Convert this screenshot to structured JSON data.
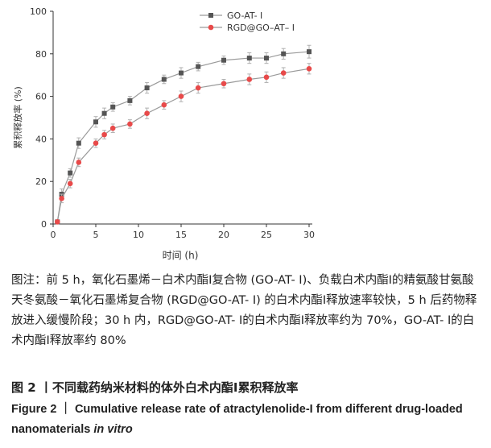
{
  "chart_data": {
    "type": "line",
    "xlabel": "时间 (h)",
    "ylabel": "累积释放率 (%)",
    "xlim": [
      0,
      30
    ],
    "ylim": [
      0,
      100
    ],
    "xticks": [
      0,
      5,
      10,
      15,
      20,
      25,
      30
    ],
    "yticks": [
      0,
      20,
      40,
      60,
      80,
      100
    ],
    "legend_position": "top-center",
    "grid": false,
    "series": [
      {
        "name": "GO-AT- Ⅰ",
        "color": "#555555",
        "marker": "square",
        "x": [
          0.5,
          1,
          2,
          3,
          5,
          6,
          7,
          9,
          11,
          13,
          15,
          17,
          20,
          23,
          25,
          27,
          30
        ],
        "y": [
          1,
          14,
          24,
          38,
          48,
          52,
          55,
          58,
          64,
          68,
          71,
          74,
          77,
          78,
          78,
          80,
          81
        ],
        "err": [
          0.5,
          2.5,
          2,
          2.5,
          2.5,
          2.5,
          2,
          2,
          2.5,
          2,
          2.5,
          2,
          2,
          2.5,
          2.5,
          2.5,
          3
        ]
      },
      {
        "name": "RGD@GO–AT– Ⅰ",
        "color": "#e84a4a",
        "marker": "circle",
        "x": [
          0.5,
          1,
          2,
          3,
          5,
          6,
          7,
          9,
          11,
          13,
          15,
          17,
          20,
          23,
          25,
          27,
          30
        ],
        "y": [
          1,
          12,
          19,
          29,
          38,
          42,
          45,
          47,
          52,
          56,
          60,
          64,
          66,
          68,
          69,
          71,
          73
        ],
        "err": [
          0.5,
          2,
          2,
          2,
          2,
          2,
          2,
          2,
          2.5,
          2,
          2.5,
          2.5,
          2,
          2.5,
          2.5,
          2.5,
          2.5
        ]
      }
    ]
  },
  "caption": {
    "note": "图注：前 5 h，氧化石墨烯－白术内酯Ⅰ复合物 (GO-AT- Ⅰ)、负载白术内酯Ⅰ的精氨酸甘氨酸天冬氨酸－氧化石墨烯复合物 (RGD@GO-AT- Ⅰ) 的白术内酯Ⅰ释放速率较快，5 h 后药物释放进入缓慢阶段；30 h 内，RGD@GO-AT- Ⅰ的白术内酯Ⅰ释放率约为 70%，GO-AT- Ⅰ的白术内酯Ⅰ释放率约 80%",
    "figure_cn": "图 2 丨不同载药纳米材料的体外白术内酯Ⅰ累积释放率",
    "figure_en": "Figure 2 ｜ Cumulative release rate of atractylenolide-I from different drug-loaded nanomaterials ",
    "figure_en_italic": "in vitro"
  }
}
